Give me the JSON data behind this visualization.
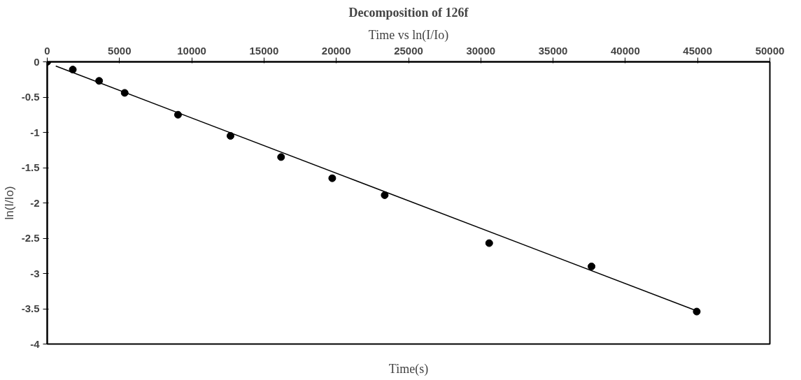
{
  "chart_data": {
    "type": "scatter",
    "title": "Decomposition of 126f",
    "subtitle": "Time vs ln(I/Io)",
    "xlabel": "Time(s)",
    "ylabel": "ln(I/Io)",
    "xlim": [
      0,
      50000
    ],
    "ylim": [
      -4,
      0
    ],
    "xticks": [
      0,
      5000,
      10000,
      15000,
      20000,
      25000,
      30000,
      35000,
      40000,
      45000,
      50000
    ],
    "yticks": [
      0,
      -0.5,
      -1,
      -1.5,
      -2,
      -2.5,
      -3,
      -3.5,
      -4
    ],
    "grid": false,
    "series": [
      {
        "marker": "circle",
        "color": "#000000",
        "x": [
          0,
          1770,
          3590,
          5360,
          9050,
          12680,
          16180,
          19720,
          23350,
          30580,
          37660,
          44940
        ],
        "values": [
          0,
          -0.11,
          -0.27,
          -0.44,
          -0.75,
          -1.05,
          -1.35,
          -1.65,
          -1.89,
          -2.57,
          -2.9,
          -3.54
        ]
      },
      {
        "type": "line",
        "color": "#000000",
        "line_style": "solid",
        "x": [
          590,
          44940
        ],
        "values": [
          -0.06,
          -3.53
        ]
      }
    ]
  }
}
